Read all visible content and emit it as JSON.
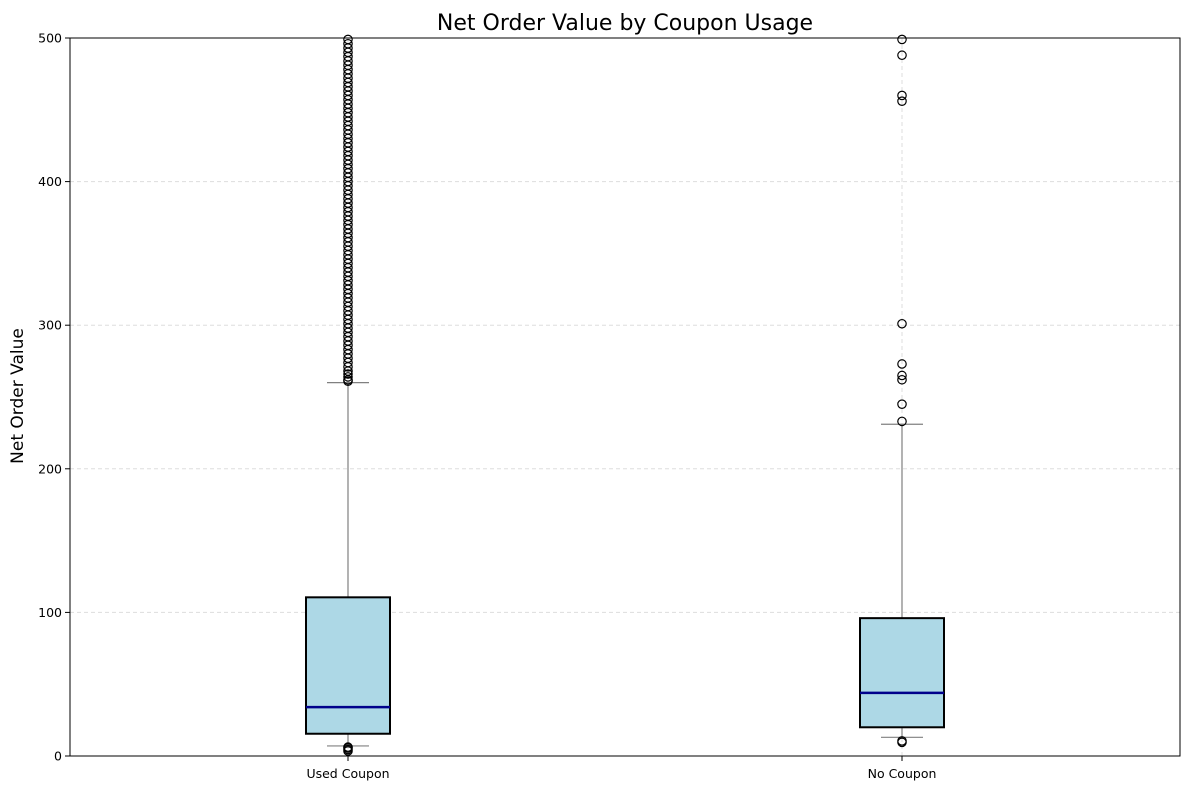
{
  "chart_data": {
    "type": "box",
    "title": "Net Order Value by Coupon Usage",
    "xlabel": "",
    "ylabel": "Net Order Value",
    "ylim": [
      0,
      500
    ],
    "yticks": [
      0,
      100,
      200,
      300,
      400,
      500
    ],
    "grid": true,
    "colors": {
      "box_fill": "#add8e6",
      "box_edge": "#000000",
      "median": "#00008b",
      "whisker": "#808080",
      "grid": "#dddddd"
    },
    "categories": [
      "Used Coupon",
      "No Coupon"
    ],
    "boxes": [
      {
        "category": "Used Coupon",
        "whisker_low": 7,
        "q1": 15.5,
        "median": 34,
        "q3": 110.5,
        "whisker_high": 260,
        "outliers_high": [
          261,
          262,
          264,
          266,
          268,
          271,
          274,
          277,
          280,
          283,
          286,
          289,
          292,
          295,
          298,
          301,
          304,
          307,
          310,
          313,
          316,
          319,
          322,
          325,
          328,
          331,
          334,
          337,
          340,
          343,
          346,
          349,
          352,
          355,
          358,
          361,
          364,
          367,
          370,
          373,
          376,
          379,
          382,
          385,
          388,
          391,
          394,
          397,
          400,
          403,
          406,
          409,
          412,
          415,
          418,
          421,
          424,
          427,
          430,
          433,
          436,
          439,
          442,
          445,
          448,
          451,
          454,
          457,
          460,
          463,
          466,
          469,
          472,
          475,
          478,
          481,
          484,
          487,
          490,
          493,
          496,
          499
        ],
        "outliers_low": [
          3.5,
          4.5,
          5.5,
          6.2
        ]
      },
      {
        "category": "No Coupon",
        "whisker_low": 13,
        "q1": 20,
        "median": 44,
        "q3": 96,
        "whisker_high": 231,
        "outliers_high": [
          233,
          245,
          262,
          265,
          273,
          301,
          456,
          460,
          488,
          499
        ],
        "outliers_low": [
          9.5,
          10.5
        ]
      }
    ]
  }
}
